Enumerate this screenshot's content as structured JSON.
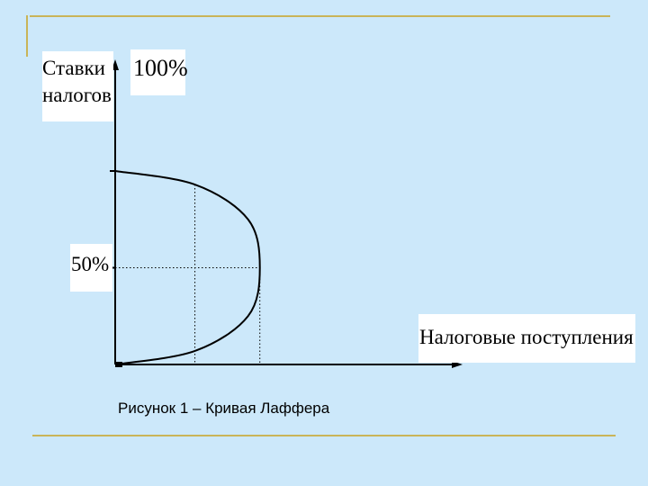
{
  "colors": {
    "background": "#cce8fa",
    "frame": "#c9b458",
    "curve": "#000000"
  },
  "chart_data": {
    "type": "line",
    "title": "",
    "ylabel": "Ставки налогов",
    "xlabel": "Налоговые поступления",
    "y_tick_labels": [
      "100%",
      "50%"
    ],
    "y_ticks": [
      100,
      50
    ],
    "ylim": [
      0,
      100
    ],
    "xlim": [
      0,
      100
    ],
    "curve_points": [
      {
        "x": 0,
        "y": 100
      },
      {
        "x": 27,
        "y": 93
      },
      {
        "x": 45,
        "y": 75
      },
      {
        "x": 49,
        "y": 50
      },
      {
        "x": 45,
        "y": 25
      },
      {
        "x": 27,
        "y": 7
      },
      {
        "x": 0,
        "y": 0
      }
    ],
    "guides": [
      {
        "type": "horizontal",
        "y": 50
      },
      {
        "type": "vertical",
        "x": 49
      },
      {
        "type": "vertical",
        "x": 27
      }
    ],
    "grid": false
  },
  "caption": "Рисунок 1 – Кривая Лаффера"
}
